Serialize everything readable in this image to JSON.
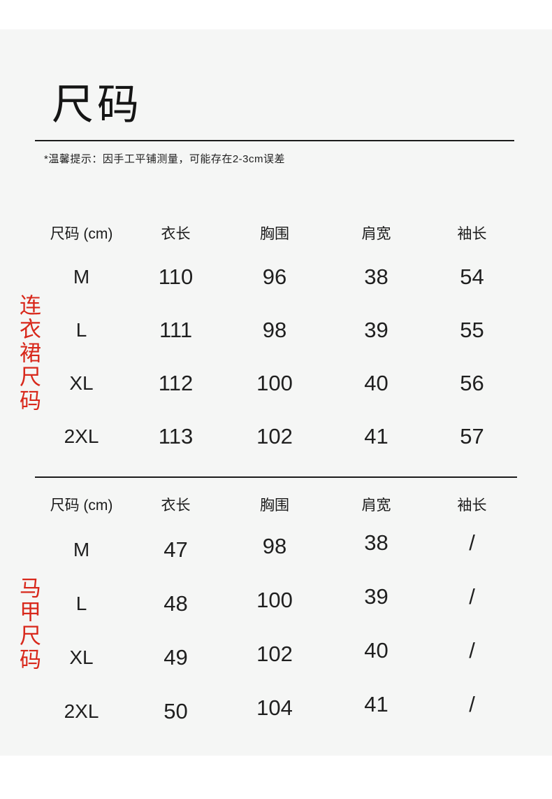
{
  "page": {
    "title": "尺码",
    "note": "*温馨提示：因手工平铺测量，可能存在2-3cm误差"
  },
  "colors": {
    "background": "#f5f6f5",
    "accent_red": "#d8281b",
    "text": "#1f1f1f",
    "divider": "#1c1c1c"
  },
  "tables": [
    {
      "side_label": "连衣裙尺码",
      "headers": [
        "尺码 (cm)",
        "衣长",
        "胸围",
        "肩宽",
        "袖长"
      ],
      "rows": [
        [
          "M",
          "110",
          "96",
          "38",
          "54"
        ],
        [
          "L",
          "111",
          "98",
          "39",
          "55"
        ],
        [
          "XL",
          "112",
          "100",
          "40",
          "56"
        ],
        [
          "2XL",
          "113",
          "102",
          "41",
          "57"
        ]
      ]
    },
    {
      "side_label": "马甲尺码",
      "headers": [
        "尺码 (cm)",
        "衣长",
        "胸围",
        "肩宽",
        "袖长"
      ],
      "rows": [
        [
          "M",
          "47",
          "98",
          "38",
          "/"
        ],
        [
          "L",
          "48",
          "100",
          "39",
          "/"
        ],
        [
          "XL",
          "49",
          "102",
          "40",
          "/"
        ],
        [
          "2XL",
          "50",
          "104",
          "41",
          "/"
        ]
      ]
    }
  ]
}
